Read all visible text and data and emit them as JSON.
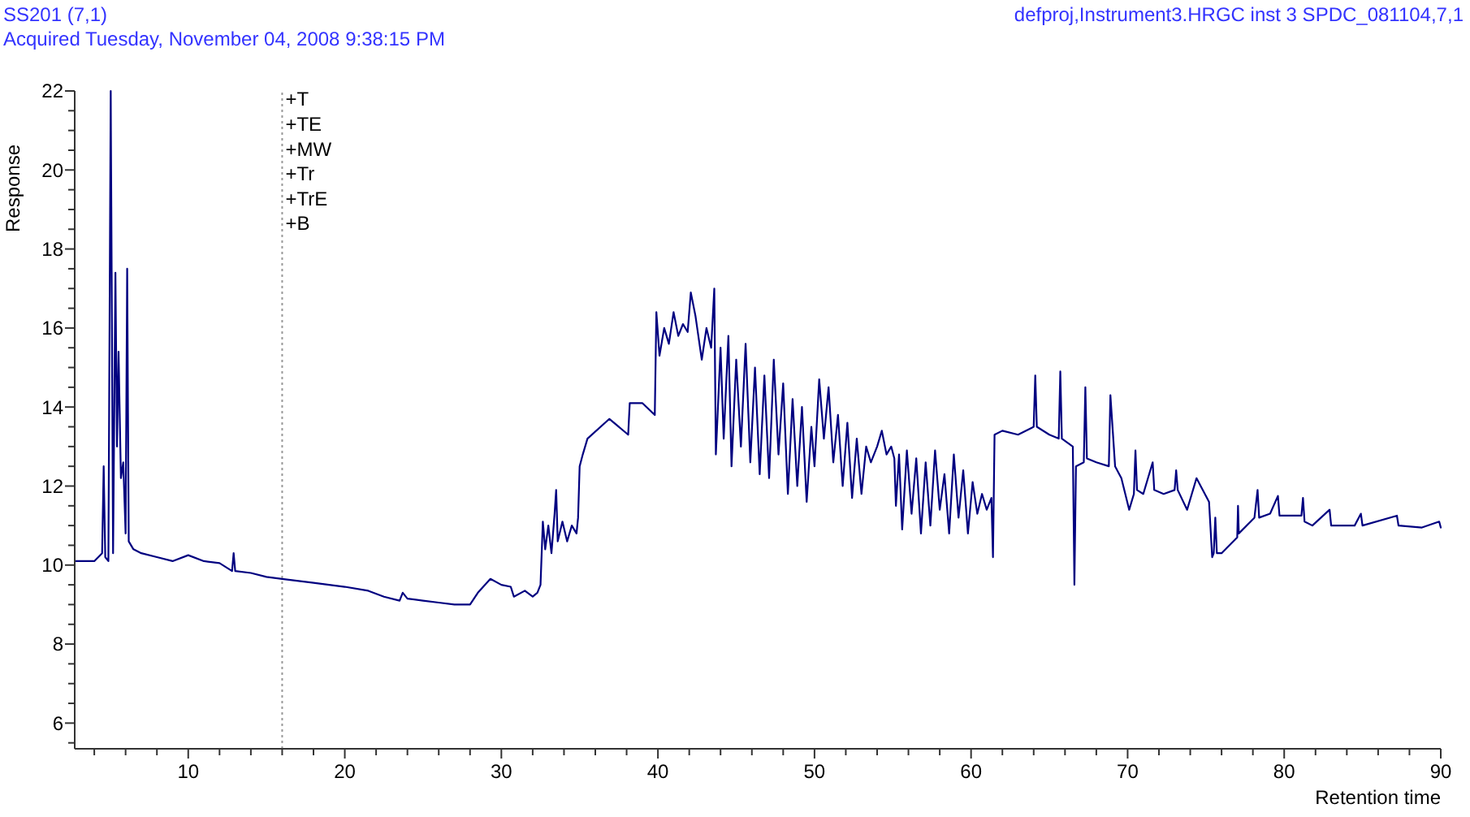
{
  "chart_data": {
    "type": "line",
    "title": "SS201 (7,1)",
    "subtitle": "Acquired Tuesday, November 04, 2008 9:38:15 PM",
    "xlabel": "Retention time",
    "ylabel": "Response",
    "annotations": [
      "defproj,Instrument3.HRGC inst 3 SPDC_081104,7,1",
      "+T",
      "+TE",
      "+MW",
      "+Tr",
      "+TrE",
      "+B"
    ],
    "xlim": [
      2.75,
      90
    ],
    "ylim": [
      5.35,
      22
    ],
    "xticks": [
      {
        "value": 4,
        "label": null
      },
      {
        "value": 6,
        "label": null
      },
      {
        "value": 8,
        "label": null
      },
      10,
      {
        "value": 12,
        "label": null
      },
      {
        "value": 14,
        "label": null
      },
      {
        "value": 16,
        "label": null
      },
      {
        "value": 18,
        "label": null
      },
      20,
      {
        "value": 22,
        "label": null
      },
      {
        "value": 24,
        "label": null
      },
      {
        "value": 26,
        "label": null
      },
      {
        "value": 28,
        "label": null
      },
      30,
      {
        "value": 32,
        "label": null
      },
      {
        "value": 34,
        "label": null
      },
      {
        "value": 36,
        "label": null
      },
      {
        "value": 38,
        "label": null
      },
      40,
      {
        "value": 42,
        "label": null
      },
      {
        "value": 44,
        "label": null
      },
      {
        "value": 46,
        "label": null
      },
      {
        "value": 48,
        "label": null
      },
      50,
      {
        "value": 52,
        "label": null
      },
      {
        "value": 54,
        "label": null
      },
      {
        "value": 56,
        "label": null
      },
      {
        "value": 58,
        "label": null
      },
      60,
      {
        "value": 62,
        "label": null
      },
      {
        "value": 64,
        "label": null
      },
      {
        "value": 66,
        "label": null
      },
      {
        "value": 68,
        "label": null
      },
      70,
      {
        "value": 72,
        "label": null
      },
      {
        "value": 74,
        "label": null
      },
      {
        "value": 76,
        "label": null
      },
      {
        "value": 78,
        "label": null
      },
      80,
      {
        "value": 82,
        "label": null
      },
      {
        "value": 84,
        "label": null
      },
      {
        "value": 86,
        "label": null
      },
      {
        "value": 88,
        "label": null
      },
      90
    ],
    "yticks": [
      {
        "value": 5.5,
        "label": null
      },
      6,
      {
        "value": 6.5,
        "label": null
      },
      {
        "value": 7,
        "label": null
      },
      {
        "value": 7.5,
        "label": null
      },
      8,
      {
        "value": 8.5,
        "label": null
      },
      {
        "value": 9,
        "label": null
      },
      {
        "value": 9.5,
        "label": null
      },
      10,
      {
        "value": 10.5,
        "label": null
      },
      {
        "value": 11,
        "label": null
      },
      {
        "value": 11.5,
        "label": null
      },
      12,
      {
        "value": 12.5,
        "label": null
      },
      {
        "value": 13,
        "label": null
      },
      {
        "value": 13.5,
        "label": null
      },
      14,
      {
        "value": 14.5,
        "label": null
      },
      {
        "value": 15,
        "label": null
      },
      {
        "value": 15.5,
        "label": null
      },
      16,
      {
        "value": 16.5,
        "label": null
      },
      {
        "value": 17,
        "label": null
      },
      {
        "value": 17.5,
        "label": null
      },
      18,
      {
        "value": 18.5,
        "label": null
      },
      {
        "value": 19,
        "label": null
      },
      {
        "value": 19.5,
        "label": null
      },
      20,
      {
        "value": 20.5,
        "label": null
      },
      {
        "value": 21,
        "label": null
      },
      {
        "value": 21.5,
        "label": null
      },
      22
    ],
    "ref_lines": [
      {
        "axis": "x",
        "value": 16,
        "color": "#999999",
        "line_style": "dotted"
      }
    ],
    "grid": false,
    "marker": "none",
    "line_style": "solid",
    "series": [
      {
        "color": "#000080",
        "x": [
          2.8,
          4.0,
          4.5,
          4.6,
          4.7,
          4.9,
          5.05,
          5.2,
          5.35,
          5.45,
          5.55,
          5.7,
          5.85,
          6.0,
          6.1,
          6.2,
          6.5,
          7,
          8,
          9,
          10,
          11,
          12,
          12.8,
          12.9,
          13,
          14,
          15,
          16,
          18,
          20,
          21.5,
          22.5,
          23.5,
          23.7,
          24,
          25,
          26,
          27,
          28,
          28.5,
          29.3,
          30,
          30.6,
          30.8,
          31.5,
          32,
          32.3,
          32.5,
          32.65,
          32.8,
          33.0,
          33.2,
          33.4,
          33.5,
          33.6,
          33.9,
          34.2,
          34.5,
          34.8,
          34.9,
          35.0,
          35.2,
          35.5,
          36.9,
          38.1,
          38.2,
          39.0,
          39.8,
          39.9,
          40.1,
          40.4,
          40.7,
          41.0,
          41.3,
          41.6,
          41.9,
          42.1,
          42.4,
          42.8,
          43.1,
          43.4,
          43.6,
          43.7,
          44.0,
          44.2,
          44.5,
          44.7,
          45.0,
          45.3,
          45.6,
          45.9,
          46.2,
          46.5,
          46.8,
          47.1,
          47.4,
          47.7,
          48.0,
          48.3,
          48.6,
          48.9,
          49.2,
          49.5,
          49.8,
          50.0,
          50.3,
          50.6,
          50.9,
          51.2,
          51.5,
          51.8,
          52.1,
          52.4,
          52.7,
          53.0,
          53.3,
          53.6,
          54.0,
          54.3,
          54.6,
          54.9,
          55.1,
          55.2,
          55.4,
          55.6,
          55.9,
          56.2,
          56.5,
          56.8,
          57.1,
          57.4,
          57.7,
          58.0,
          58.3,
          58.6,
          58.9,
          59.2,
          59.5,
          59.8,
          60.1,
          60.4,
          60.7,
          61.0,
          61.3,
          61.4,
          61.5,
          62.0,
          63.0,
          64.0,
          64.1,
          64.2,
          65.0,
          65.6,
          65.7,
          65.8,
          66.5,
          66.6,
          66.7,
          67.2,
          67.3,
          67.4,
          68.0,
          68.8,
          68.9,
          69.2,
          69.6,
          70.1,
          70.4,
          70.5,
          70.6,
          71.0,
          71.6,
          71.7,
          72.3,
          73.0,
          73.1,
          73.2,
          73.8,
          74.4,
          75.2,
          75.4,
          75.5,
          75.6,
          75.7,
          76.0,
          77.0,
          77.05,
          77.1,
          78.1,
          78.3,
          78.4,
          79.1,
          79.6,
          79.7,
          81.1,
          81.2,
          81.3,
          81.8,
          82.9,
          83.0,
          84.5,
          84.9,
          85.0,
          87.2,
          87.3,
          88.8,
          89.9,
          90
        ],
        "values": [
          10.1,
          10.1,
          10.3,
          12.5,
          10.2,
          10.1,
          22,
          10.3,
          17.4,
          13,
          15.4,
          12.2,
          12.6,
          10.8,
          17.5,
          10.6,
          10.4,
          10.3,
          10.2,
          10.1,
          10.25,
          10.1,
          10.05,
          9.85,
          10.3,
          9.85,
          9.8,
          9.7,
          9.65,
          9.55,
          9.45,
          9.35,
          9.2,
          9.1,
          9.3,
          9.15,
          9.1,
          9.05,
          9.0,
          9.0,
          9.3,
          9.65,
          9.5,
          9.45,
          9.2,
          9.35,
          9.2,
          9.3,
          9.5,
          11.1,
          10.4,
          11.0,
          10.3,
          11.3,
          11.9,
          10.6,
          11.1,
          10.6,
          11.0,
          10.8,
          11.2,
          12.5,
          12.8,
          13.2,
          13.7,
          13.3,
          14.1,
          14.1,
          13.8,
          16.4,
          15.3,
          16.0,
          15.6,
          16.4,
          15.8,
          16.1,
          15.9,
          16.9,
          16.3,
          15.2,
          16.0,
          15.5,
          17.0,
          12.8,
          15.5,
          13.2,
          15.8,
          12.5,
          15.2,
          13.0,
          15.6,
          12.6,
          15.0,
          12.3,
          14.8,
          12.2,
          15.2,
          12.8,
          14.6,
          11.8,
          14.2,
          12.0,
          14.0,
          11.6,
          13.5,
          12.5,
          14.7,
          13.2,
          14.5,
          12.6,
          13.8,
          12.0,
          13.6,
          11.7,
          13.2,
          11.8,
          13.0,
          12.6,
          13.0,
          13.4,
          12.8,
          13.0,
          12.7,
          11.5,
          12.8,
          10.9,
          12.9,
          11.3,
          12.7,
          10.8,
          12.6,
          11.0,
          12.9,
          11.4,
          12.3,
          10.8,
          12.8,
          11.2,
          12.4,
          10.8,
          12.1,
          11.3,
          11.8,
          11.4,
          11.7,
          10.2,
          13.3,
          13.4,
          13.3,
          13.5,
          14.8,
          13.5,
          13.3,
          13.2,
          14.9,
          13.2,
          13.0,
          9.5,
          12.5,
          12.6,
          14.5,
          12.7,
          12.6,
          12.5,
          14.3,
          12.5,
          12.2,
          11.4,
          11.8,
          12.9,
          11.9,
          11.8,
          12.6,
          11.9,
          11.8,
          11.9,
          12.4,
          11.9,
          11.4,
          12.2,
          11.6,
          10.2,
          10.3,
          11.2,
          10.3,
          10.3,
          10.7,
          11.5,
          10.8,
          11.2,
          11.9,
          11.2,
          11.3,
          11.75,
          11.25,
          11.25,
          11.7,
          11.1,
          11.0,
          11.4,
          11.0,
          11.0,
          11.3,
          11.0,
          11.25,
          11.0,
          10.95,
          11.1,
          10.95
        ]
      }
    ]
  }
}
